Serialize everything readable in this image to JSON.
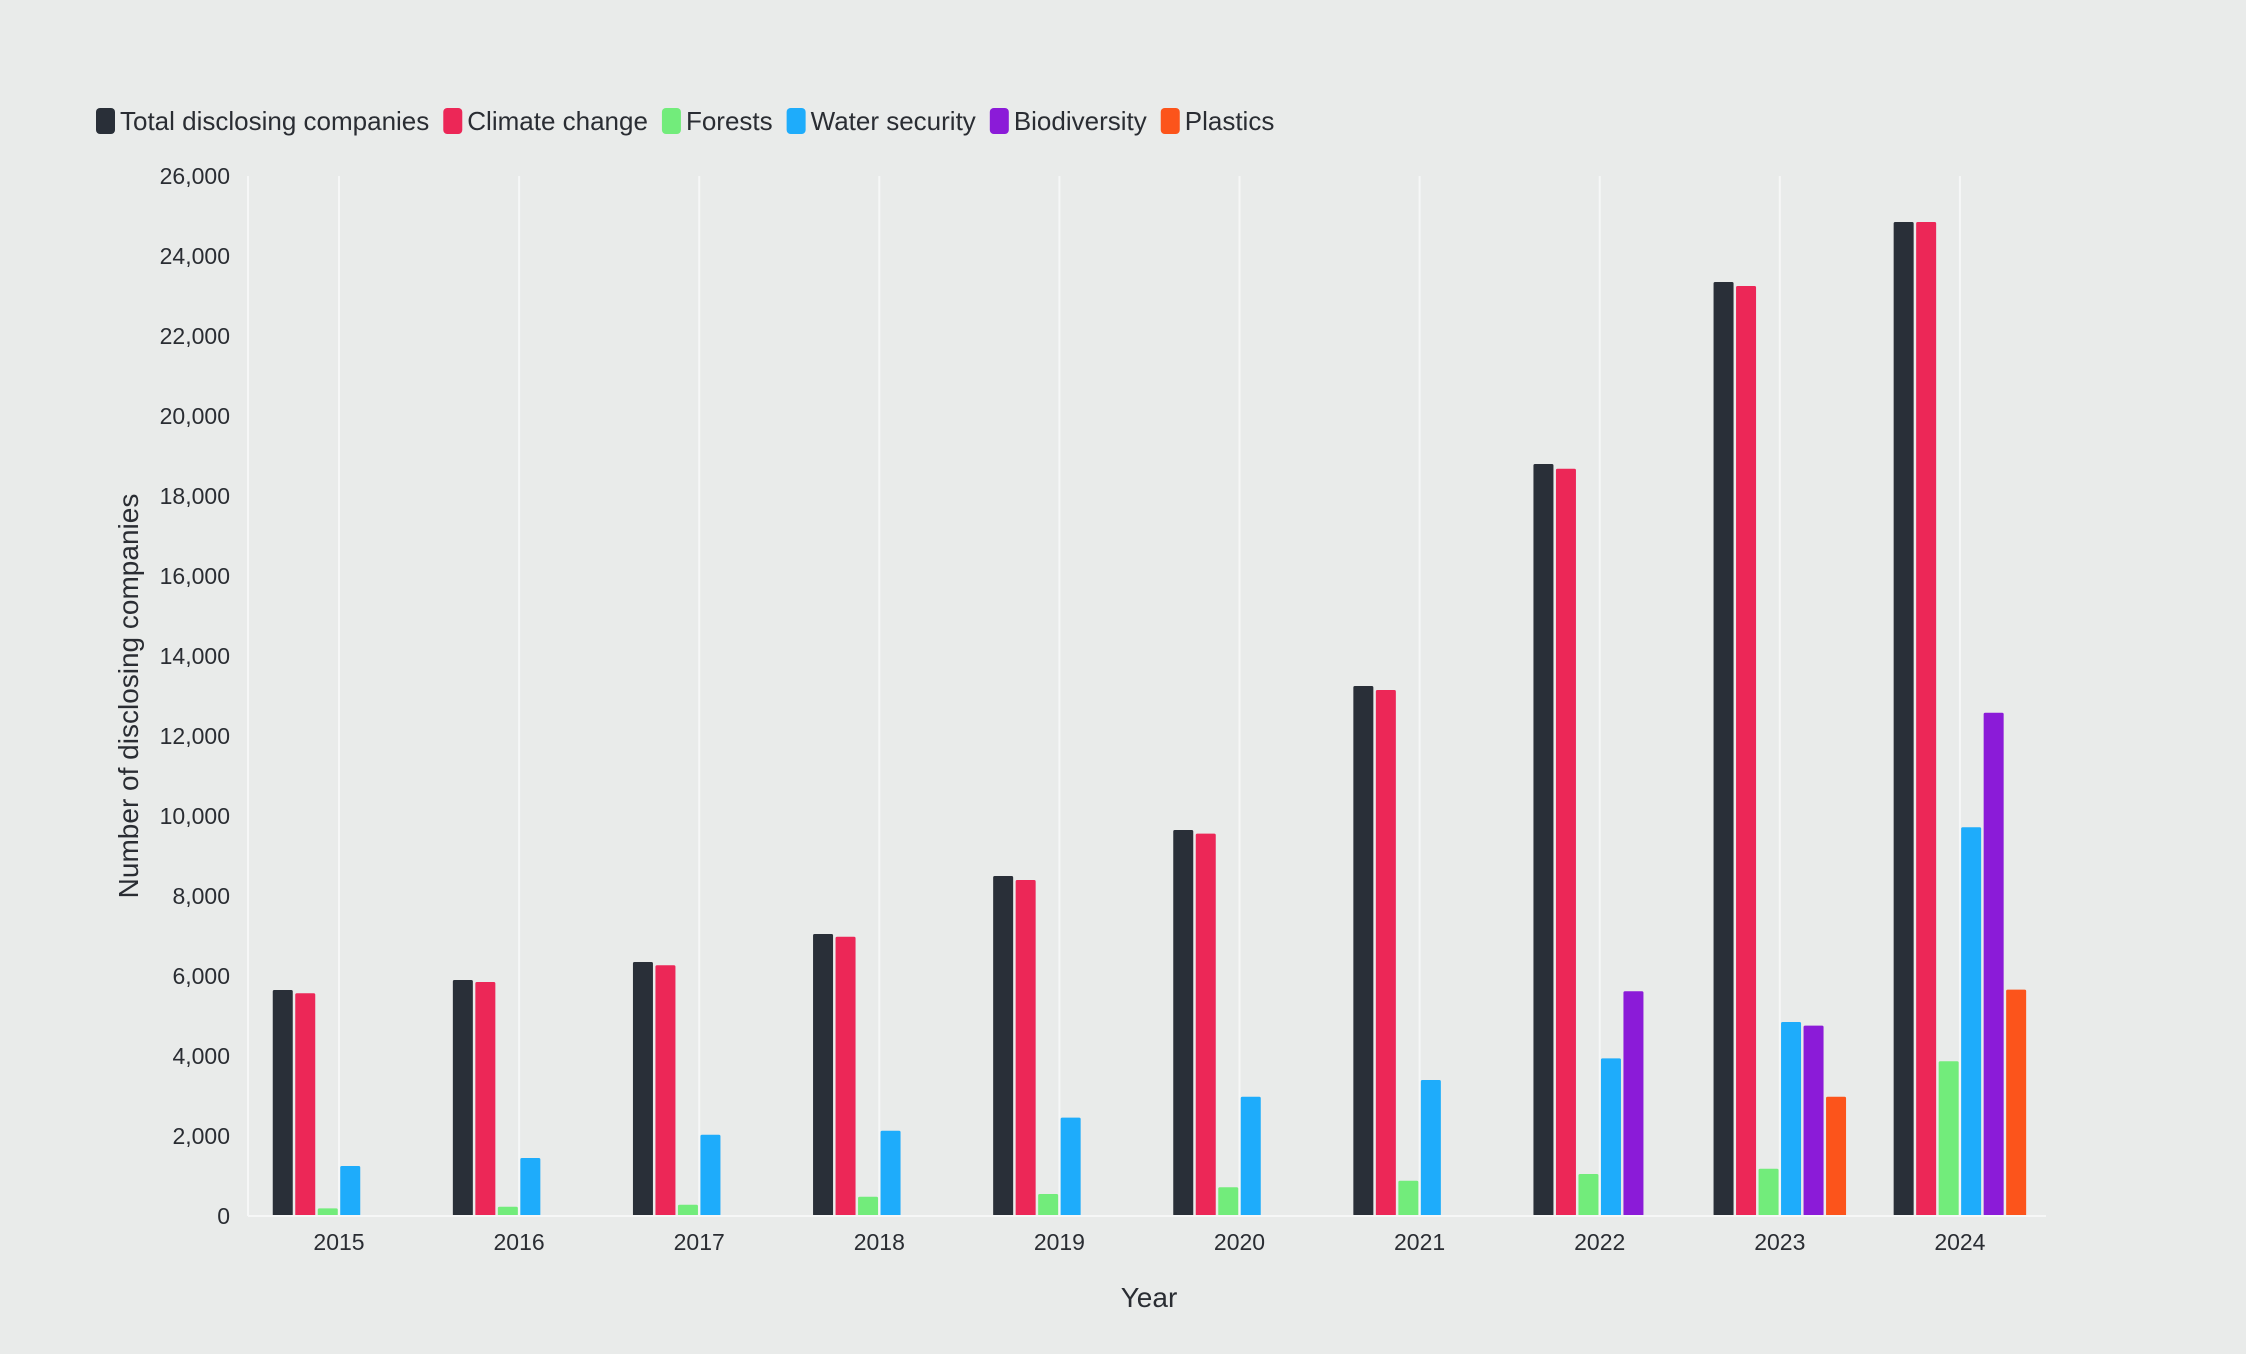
{
  "chart_data": {
    "type": "bar",
    "title": "",
    "xlabel": "Year",
    "ylabel": "Number of disclosing companies",
    "ylim": [
      0,
      26000
    ],
    "yticks": [
      0,
      2000,
      4000,
      6000,
      8000,
      10000,
      12000,
      14000,
      16000,
      18000,
      20000,
      22000,
      24000,
      26000
    ],
    "ytick_labels": [
      "0",
      "2,000",
      "4,000",
      "6,000",
      "8,000",
      "10,000",
      "12,000",
      "14,000",
      "16,000",
      "18,000",
      "20,000",
      "22,000",
      "24,000",
      "26,000"
    ],
    "grid": "vertical",
    "legend_position": "top-left",
    "categories": [
      "2015",
      "2016",
      "2017",
      "2018",
      "2019",
      "2020",
      "2021",
      "2022",
      "2023",
      "2024"
    ],
    "series": [
      {
        "name": "Total disclosing companies",
        "color": "#292f38",
        "values": [
          5650,
          5900,
          6350,
          7050,
          8500,
          9650,
          13250,
          18800,
          23350,
          24850
        ]
      },
      {
        "name": "Climate change",
        "color": "#ec2757",
        "values": [
          5570,
          5850,
          6270,
          6980,
          8400,
          9560,
          13150,
          18680,
          23250,
          24850
        ]
      },
      {
        "name": "Forests",
        "color": "#72ec7b",
        "values": [
          190,
          230,
          280,
          480,
          550,
          720,
          880,
          1050,
          1180,
          3870
        ]
      },
      {
        "name": "Water security",
        "color": "#1eacfb",
        "values": [
          1250,
          1450,
          2030,
          2130,
          2460,
          2980,
          3400,
          3940,
          4850,
          9720
        ]
      },
      {
        "name": "Biodiversity",
        "color": "#8b1bd8",
        "values": [
          null,
          null,
          null,
          null,
          null,
          null,
          null,
          5620,
          4760,
          12580
        ]
      },
      {
        "name": "Plastics",
        "color": "#fc541b",
        "values": [
          null,
          null,
          null,
          null,
          null,
          null,
          null,
          null,
          2980,
          5660
        ]
      }
    ]
  }
}
